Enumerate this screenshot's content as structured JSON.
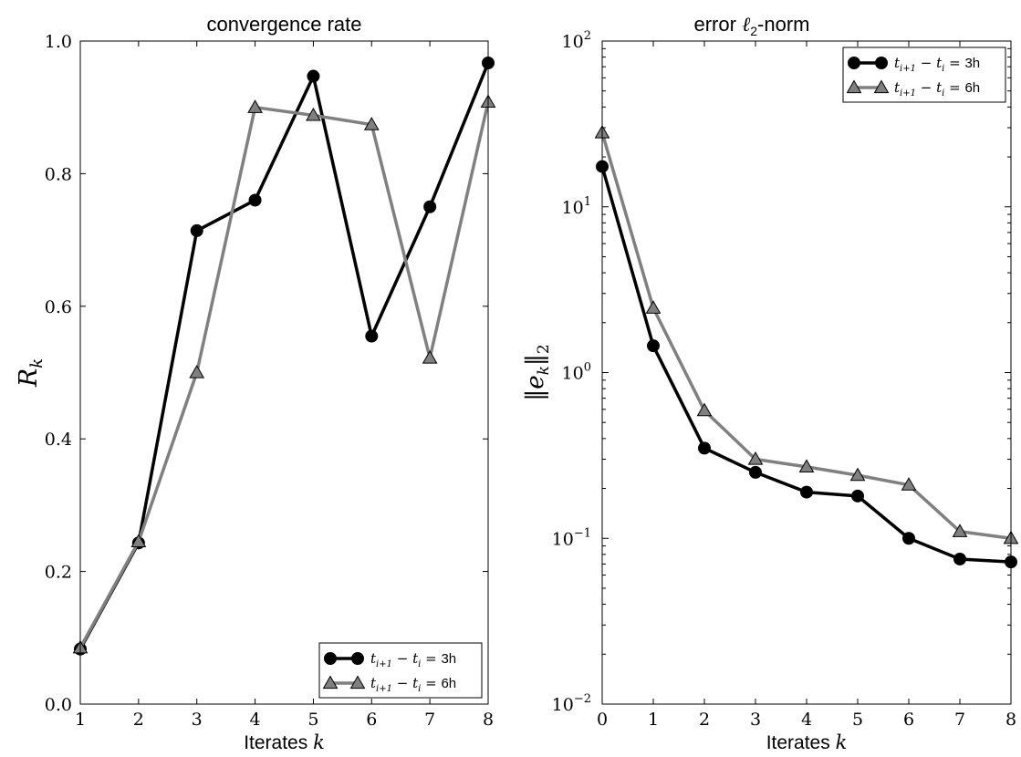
{
  "chart_data": [
    {
      "type": "line",
      "title": "convergence rate",
      "xlabel": {
        "text": "Iterates",
        "var": "k"
      },
      "ylabel": {
        "base": "R",
        "sub": "k"
      },
      "x": [
        1,
        2,
        3,
        4,
        5,
        6,
        7,
        8
      ],
      "xlim": [
        1,
        8
      ],
      "ylim": [
        0.0,
        1.0
      ],
      "xticks": [
        "1",
        "2",
        "3",
        "4",
        "5",
        "6",
        "7",
        "8"
      ],
      "yticks": [
        "0.0",
        "0.2",
        "0.4",
        "0.6",
        "0.8",
        "1.0"
      ],
      "legend_position": "bottom-right",
      "series": [
        {
          "name_prefix": "t",
          "name_sub1": "i+1",
          "name_mid": " − t",
          "name_sub2": "i",
          "name_eq": " = ",
          "name_value": "3h",
          "color": "#000000",
          "marker": "circle",
          "values": [
            0.083,
            0.243,
            0.714,
            0.76,
            0.947,
            0.555,
            0.75,
            0.967
          ]
        },
        {
          "name_prefix": "t",
          "name_sub1": "i+1",
          "name_mid": " − t",
          "name_sub2": "i",
          "name_eq": " = ",
          "name_value": "6h",
          "color": "#808080",
          "marker": "triangle",
          "values": [
            0.085,
            0.245,
            0.5,
            0.9,
            0.888,
            0.874,
            0.522,
            0.908
          ]
        }
      ]
    },
    {
      "type": "line",
      "title_prefix": "error ",
      "title_var": "ℓ",
      "title_sub": "2",
      "title_suffix": "-norm",
      "xlabel": {
        "text": "Iterates",
        "var": "k"
      },
      "ylabel": {
        "inner": "e",
        "sub_inner": "k",
        "sub_outer": "2"
      },
      "yscale": "log",
      "x": [
        0,
        1,
        2,
        3,
        4,
        5,
        6,
        7,
        8
      ],
      "xlim": [
        0,
        8
      ],
      "ylim": [
        0.01,
        100
      ],
      "xticks": [
        "0",
        "1",
        "2",
        "3",
        "4",
        "5",
        "6",
        "7",
        "8"
      ],
      "yticks": [
        {
          "base": "10",
          "exp": "−2"
        },
        {
          "base": "10",
          "exp": "−1"
        },
        {
          "base": "10",
          "exp": "0"
        },
        {
          "base": "10",
          "exp": "1"
        },
        {
          "base": "10",
          "exp": "2"
        }
      ],
      "legend_position": "top-right",
      "series": [
        {
          "name_prefix": "t",
          "name_sub1": "i+1",
          "name_mid": " − t",
          "name_sub2": "i",
          "name_eq": " = ",
          "name_value": "3h",
          "color": "#000000",
          "marker": "circle",
          "values": [
            17.5,
            1.45,
            0.35,
            0.25,
            0.19,
            0.18,
            0.1,
            0.075,
            0.072
          ]
        },
        {
          "name_prefix": "t",
          "name_sub1": "i+1",
          "name_mid": " − t",
          "name_sub2": "i",
          "name_eq": " = ",
          "name_value": "6h",
          "color": "#808080",
          "marker": "triangle",
          "values": [
            28.0,
            2.45,
            0.59,
            0.3,
            0.27,
            0.24,
            0.21,
            0.11,
            0.1
          ]
        }
      ]
    }
  ]
}
